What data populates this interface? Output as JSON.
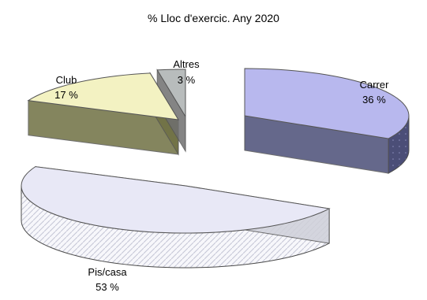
{
  "chart_data": {
    "type": "pie",
    "title": "% Lloc d'exercic. Any 2020",
    "categories": [
      "Carrer",
      "Pis/casa",
      "Club",
      "Altres"
    ],
    "values": [
      36,
      53,
      17,
      3
    ],
    "value_labels": [
      "36 %",
      "53 %",
      "17 %",
      "3 %"
    ],
    "legend": "none",
    "grid": false,
    "colors": {
      "Carrer": "#b8b8ee",
      "Pis/casa": "#e8e8f6",
      "Club": "#f3f2c2",
      "Altres": "#b8bcbc"
    },
    "side_colors": {
      "Carrer": "#4b4e77",
      "Pis/casa": "#cfd0d9",
      "Club": "#6f7043",
      "Altres": "#6f6f6f"
    }
  }
}
